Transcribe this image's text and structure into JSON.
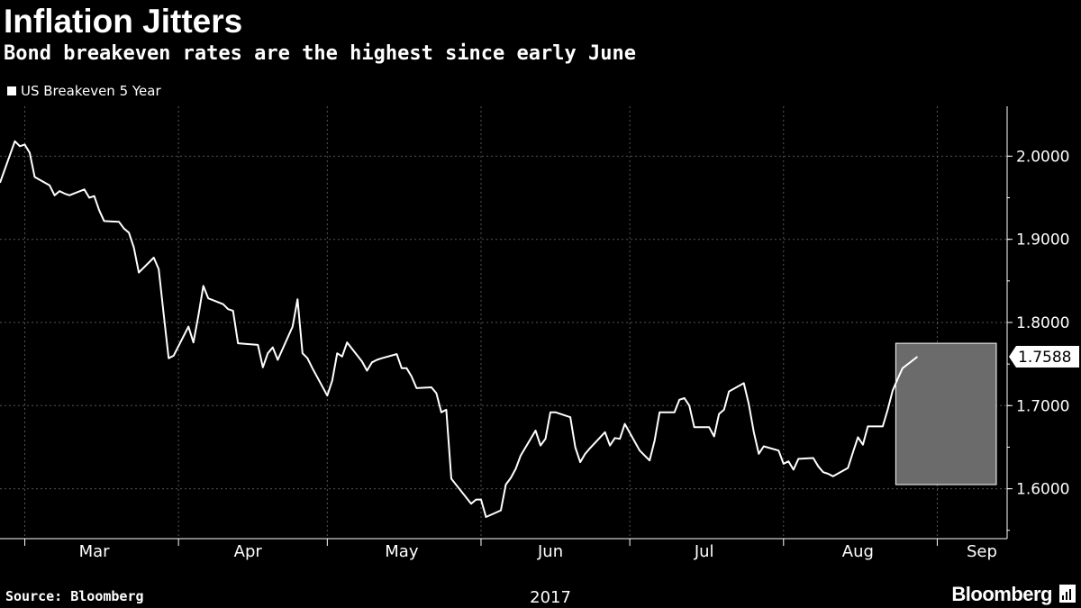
{
  "header": {
    "title": "Inflation Jitters",
    "subtitle": "Bond breakeven rates are the highest since early June"
  },
  "legend": {
    "series_label": "US Breakeven 5 Year"
  },
  "footer": {
    "source": "Source: Bloomberg",
    "brand": "Bloomberg"
  },
  "colors": {
    "background": "#000000",
    "line": "#ffffff",
    "grid": "#555555",
    "highlight": "#6b6b6b"
  },
  "chart_data": {
    "type": "line",
    "title": "Inflation Jitters",
    "subtitle": "Bond breakeven rates are the highest since early June",
    "xlabel": "",
    "ylabel": "",
    "year_label": "2017",
    "x_ticks": [
      "Mar",
      "Apr",
      "May",
      "Jun",
      "Jul",
      "Aug",
      "Sep"
    ],
    "y_ticks": [
      "1.6000",
      "1.7000",
      "1.8000",
      "1.9000",
      "2.0000"
    ],
    "ylim": [
      1.54,
      2.06
    ],
    "last_value_label": "1.7588",
    "highlight_range": {
      "start": "2017-08-24",
      "end": "2017-09-14",
      "y": [
        1.605,
        1.775
      ]
    },
    "grid": true,
    "legend_position": "top-left",
    "series": [
      {
        "name": "US Breakeven 5 Year",
        "points": [
          [
            "2017-02-24",
            1.968
          ],
          [
            "2017-02-27",
            2.018
          ],
          [
            "2017-02-28",
            2.012
          ],
          [
            "2017-03-01",
            2.014
          ],
          [
            "2017-03-02",
            2.004
          ],
          [
            "2017-03-03",
            1.975
          ],
          [
            "2017-03-06",
            1.965
          ],
          [
            "2017-03-07",
            1.953
          ],
          [
            "2017-03-08",
            1.958
          ],
          [
            "2017-03-09",
            1.955
          ],
          [
            "2017-03-10",
            1.953
          ],
          [
            "2017-03-13",
            1.96
          ],
          [
            "2017-03-14",
            1.95
          ],
          [
            "2017-03-15",
            1.952
          ],
          [
            "2017-03-16",
            1.935
          ],
          [
            "2017-03-17",
            1.922
          ],
          [
            "2017-03-20",
            1.921
          ],
          [
            "2017-03-21",
            1.913
          ],
          [
            "2017-03-22",
            1.908
          ],
          [
            "2017-03-23",
            1.89
          ],
          [
            "2017-03-24",
            1.86
          ],
          [
            "2017-03-27",
            1.878
          ],
          [
            "2017-03-28",
            1.864
          ],
          [
            "2017-03-29",
            1.81
          ],
          [
            "2017-03-30",
            1.757
          ],
          [
            "2017-03-31",
            1.76
          ],
          [
            "2017-04-03",
            1.795
          ],
          [
            "2017-04-04",
            1.776
          ],
          [
            "2017-04-05",
            1.808
          ],
          [
            "2017-04-06",
            1.844
          ],
          [
            "2017-04-07",
            1.829
          ],
          [
            "2017-04-10",
            1.822
          ],
          [
            "2017-04-11",
            1.816
          ],
          [
            "2017-04-12",
            1.814
          ],
          [
            "2017-04-13",
            1.775
          ],
          [
            "2017-04-17",
            1.773
          ],
          [
            "2017-04-18",
            1.746
          ],
          [
            "2017-04-19",
            1.763
          ],
          [
            "2017-04-20",
            1.77
          ],
          [
            "2017-04-21",
            1.755
          ],
          [
            "2017-04-24",
            1.795
          ],
          [
            "2017-04-25",
            1.828
          ],
          [
            "2017-04-26",
            1.763
          ],
          [
            "2017-04-27",
            1.757
          ],
          [
            "2017-04-28",
            1.745
          ],
          [
            "2017-05-01",
            1.712
          ],
          [
            "2017-05-02",
            1.73
          ],
          [
            "2017-05-03",
            1.763
          ],
          [
            "2017-05-04",
            1.759
          ],
          [
            "2017-05-05",
            1.776
          ],
          [
            "2017-05-08",
            1.753
          ],
          [
            "2017-05-09",
            1.742
          ],
          [
            "2017-05-10",
            1.752
          ],
          [
            "2017-05-11",
            1.755
          ],
          [
            "2017-05-12",
            1.757
          ],
          [
            "2017-05-15",
            1.762
          ],
          [
            "2017-05-16",
            1.745
          ],
          [
            "2017-05-17",
            1.745
          ],
          [
            "2017-05-18",
            1.735
          ],
          [
            "2017-05-19",
            1.721
          ],
          [
            "2017-05-22",
            1.722
          ],
          [
            "2017-05-23",
            1.715
          ],
          [
            "2017-05-24",
            1.692
          ],
          [
            "2017-05-25",
            1.695
          ],
          [
            "2017-05-26",
            1.612
          ],
          [
            "2017-05-30",
            1.582
          ],
          [
            "2017-05-31",
            1.587
          ],
          [
            "2017-06-01",
            1.587
          ],
          [
            "2017-06-02",
            1.566
          ],
          [
            "2017-06-05",
            1.574
          ],
          [
            "2017-06-06",
            1.605
          ],
          [
            "2017-06-07",
            1.613
          ],
          [
            "2017-06-08",
            1.624
          ],
          [
            "2017-06-09",
            1.64
          ],
          [
            "2017-06-12",
            1.67
          ],
          [
            "2017-06-13",
            1.652
          ],
          [
            "2017-06-14",
            1.66
          ],
          [
            "2017-06-15",
            1.692
          ],
          [
            "2017-06-16",
            1.692
          ],
          [
            "2017-06-19",
            1.686
          ],
          [
            "2017-06-20",
            1.65
          ],
          [
            "2017-06-21",
            1.632
          ],
          [
            "2017-06-22",
            1.642
          ],
          [
            "2017-06-23",
            1.649
          ],
          [
            "2017-06-26",
            1.668
          ],
          [
            "2017-06-27",
            1.652
          ],
          [
            "2017-06-28",
            1.661
          ],
          [
            "2017-06-29",
            1.66
          ],
          [
            "2017-06-30",
            1.678
          ],
          [
            "2017-07-03",
            1.646
          ],
          [
            "2017-07-05",
            1.634
          ],
          [
            "2017-07-06",
            1.658
          ],
          [
            "2017-07-07",
            1.692
          ],
          [
            "2017-07-10",
            1.692
          ],
          [
            "2017-07-11",
            1.707
          ],
          [
            "2017-07-12",
            1.709
          ],
          [
            "2017-07-13",
            1.7
          ],
          [
            "2017-07-14",
            1.674
          ],
          [
            "2017-07-17",
            1.674
          ],
          [
            "2017-07-18",
            1.663
          ],
          [
            "2017-07-19",
            1.69
          ],
          [
            "2017-07-20",
            1.695
          ],
          [
            "2017-07-21",
            1.717
          ],
          [
            "2017-07-24",
            1.727
          ],
          [
            "2017-07-25",
            1.702
          ],
          [
            "2017-07-26",
            1.668
          ],
          [
            "2017-07-27",
            1.642
          ],
          [
            "2017-07-28",
            1.651
          ],
          [
            "2017-07-31",
            1.646
          ],
          [
            "2017-08-01",
            1.63
          ],
          [
            "2017-08-02",
            1.633
          ],
          [
            "2017-08-03",
            1.623
          ],
          [
            "2017-08-04",
            1.636
          ],
          [
            "2017-08-07",
            1.637
          ],
          [
            "2017-08-08",
            1.627
          ],
          [
            "2017-08-09",
            1.62
          ],
          [
            "2017-08-10",
            1.618
          ],
          [
            "2017-08-11",
            1.615
          ],
          [
            "2017-08-14",
            1.625
          ],
          [
            "2017-08-15",
            1.644
          ],
          [
            "2017-08-16",
            1.662
          ],
          [
            "2017-08-17",
            1.653
          ],
          [
            "2017-08-18",
            1.675
          ],
          [
            "2017-08-21",
            1.675
          ],
          [
            "2017-08-22",
            1.695
          ],
          [
            "2017-08-23",
            1.718
          ],
          [
            "2017-08-24",
            1.732
          ],
          [
            "2017-08-25",
            1.745
          ],
          [
            "2017-08-28",
            1.7588
          ]
        ]
      }
    ]
  }
}
